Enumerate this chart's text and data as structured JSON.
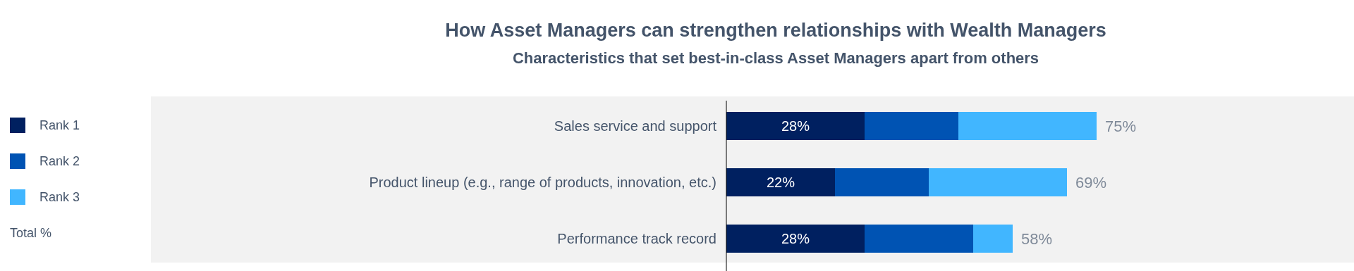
{
  "chart_data": {
    "type": "bar",
    "orientation": "horizontal",
    "stacked": true,
    "title": "How Asset Managers can strengthen relationships with Wealth Managers",
    "subtitle": "Characteristics that set best-in-class Asset Managers apart from others",
    "categories": [
      "Sales service and support",
      "Product lineup (e.g., range of products, innovation, etc.)",
      "Performance track record"
    ],
    "series": [
      {
        "name": "Rank 1",
        "color": "#002060",
        "values": [
          28,
          22,
          28
        ],
        "value_labels": [
          "28%",
          "22%",
          "28%"
        ]
      },
      {
        "name": "Rank 2",
        "color": "#0053b3",
        "values": [
          19,
          19,
          22
        ]
      },
      {
        "name": "Rank 3",
        "color": "#41b6ff",
        "values": [
          28,
          28,
          8
        ]
      }
    ],
    "totals": [
      "75%",
      "69%",
      "58%"
    ],
    "legend": "left",
    "annotations": [
      "Total %"
    ]
  }
}
